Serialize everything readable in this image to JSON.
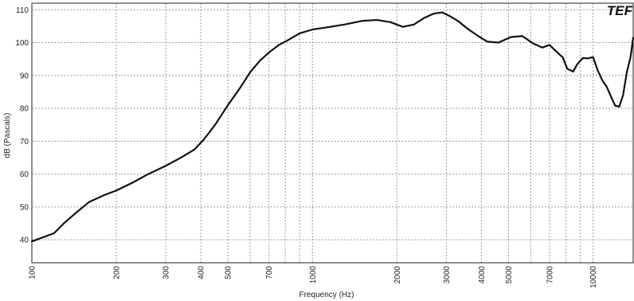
{
  "chart_data": {
    "type": "line",
    "title": "",
    "xlabel": "Frequency (Hz)",
    "ylabel": "dB (Pascals)",
    "x_scale": "log",
    "xlim": [
      100,
      14000
    ],
    "ylim": [
      33,
      112
    ],
    "grid": true,
    "logo": "TEF",
    "y_ticks": [
      40,
      50,
      60,
      70,
      80,
      90,
      100,
      110
    ],
    "x_ticks": [
      {
        "value": 100,
        "label": "100"
      },
      {
        "value": 200,
        "label": "200"
      },
      {
        "value": 300,
        "label": "300"
      },
      {
        "value": 400,
        "label": "400"
      },
      {
        "value": 500,
        "label": "500"
      },
      {
        "value": 700,
        "label": "700"
      },
      {
        "value": 1000,
        "label": "1000"
      },
      {
        "value": 2000,
        "label": "2000"
      },
      {
        "value": 3000,
        "label": "3000"
      },
      {
        "value": 4000,
        "label": "4000"
      },
      {
        "value": 5000,
        "label": "5000"
      },
      {
        "value": 7000,
        "label": "7000"
      },
      {
        "value": 10000,
        "label": "10000"
      }
    ],
    "minor_gridlines_x": [
      600,
      800,
      900,
      6000,
      8000,
      9000
    ],
    "series": [
      {
        "name": "",
        "x": [
          100,
          120,
          130,
          145,
          160,
          180,
          200,
          230,
          260,
          300,
          340,
          380,
          410,
          450,
          500,
          550,
          600,
          650,
          700,
          760,
          820,
          900,
          1000,
          1100,
          1300,
          1500,
          1700,
          1900,
          2100,
          2300,
          2500,
          2700,
          2900,
          3100,
          3300,
          3600,
          3900,
          4200,
          4600,
          5100,
          5600,
          6100,
          6600,
          7000,
          7400,
          7800,
          8100,
          8500,
          8800,
          9200,
          9600,
          10000,
          10400,
          10800,
          11200,
          11600,
          12000,
          12400,
          12800,
          13200,
          13600,
          14000
        ],
        "values": [
          39.5,
          42,
          45,
          48.5,
          51.5,
          53.5,
          55,
          57.5,
          60,
          62.5,
          65,
          67.5,
          70.5,
          75,
          81,
          86,
          91,
          94.5,
          97,
          99.3,
          100.8,
          102.8,
          104,
          104.5,
          105.5,
          106.6,
          106.9,
          106.2,
          104.8,
          105.5,
          107.5,
          108.8,
          109.2,
          108,
          106.6,
          104,
          102,
          100.3,
          100,
          101.7,
          102,
          99.8,
          98.5,
          99.3,
          97.3,
          95.5,
          92,
          91.2,
          93.5,
          95.3,
          95.2,
          95.6,
          91.5,
          88.5,
          86.5,
          83.5,
          80.8,
          80.5,
          84,
          91,
          95.5,
          101.5
        ]
      }
    ]
  }
}
